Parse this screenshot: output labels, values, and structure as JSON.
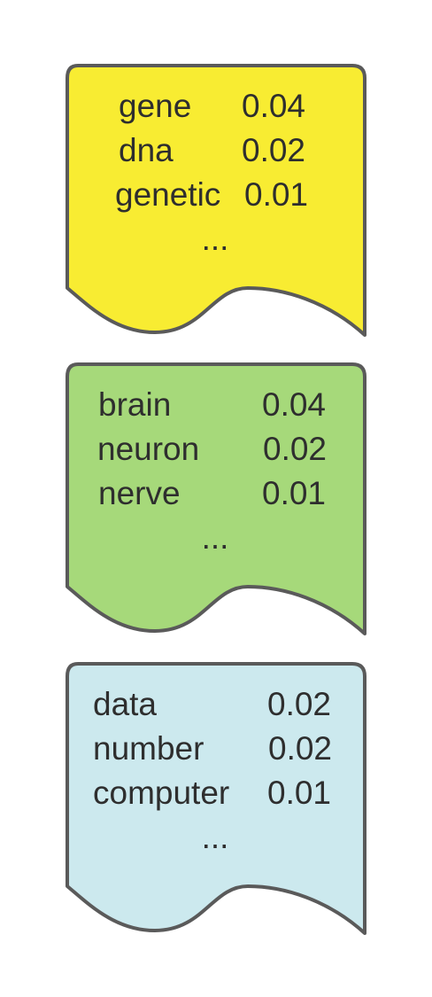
{
  "documents": [
    {
      "fill": "#f8ec32",
      "rows": [
        {
          "word": "gene",
          "prob": "0.04"
        },
        {
          "word": "dna",
          "prob": "0.02"
        },
        {
          "word": "genetic",
          "prob": "0.01"
        }
      ],
      "ellipsis": "..."
    },
    {
      "fill": "#a6d97a",
      "rows": [
        {
          "word": "brain",
          "prob": "0.04"
        },
        {
          "word": "neuron",
          "prob": "0.02"
        },
        {
          "word": "nerve",
          "prob": "0.01"
        }
      ],
      "ellipsis": "..."
    },
    {
      "fill": "#cce9ee",
      "rows": [
        {
          "word": "data",
          "prob": "0.02"
        },
        {
          "word": "number",
          "prob": "0.02"
        },
        {
          "word": "computer",
          "prob": "0.01"
        }
      ],
      "ellipsis": "..."
    }
  ],
  "stroke_color": "#5a5a5a"
}
